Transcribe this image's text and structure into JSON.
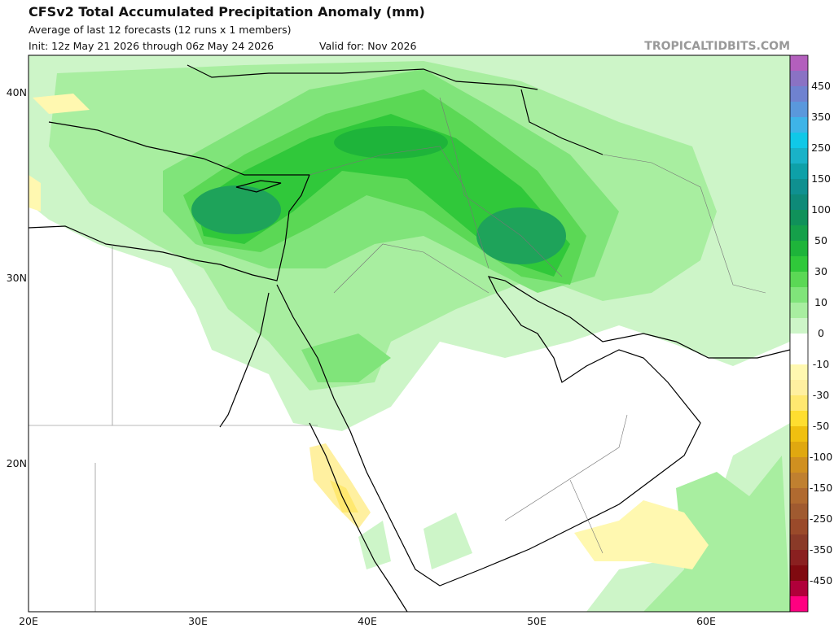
{
  "header": {
    "title": "CFSv2 Total Accumulated Precipitation Anomaly (mm)",
    "subtitle": "Average of last 12 forecasts (12 runs x 1 members)",
    "init": "Init: 12z May 21 2026 through 06z May 24 2026",
    "valid": "Valid for: Nov 2026",
    "watermark": "TROPICALTIDBITS.COM"
  },
  "map": {
    "lat_labels": [
      "40N",
      "30N",
      "20N"
    ],
    "lon_labels": [
      "20E",
      "30E",
      "40E",
      "50E",
      "60E"
    ]
  },
  "colorbar": {
    "labels": [
      "450",
      "350",
      "250",
      "150",
      "100",
      "50",
      "30",
      "10",
      "0",
      "-10",
      "-30",
      "-50",
      "-100",
      "-150",
      "-250",
      "-350",
      "-450"
    ],
    "colors": [
      "#b35fbd",
      "#8a72c4",
      "#6f82d0",
      "#5a98dc",
      "#3eb4e8",
      "#10c8e8",
      "#19b2c8",
      "#0ea0a8",
      "#0f9090",
      "#0e8a78",
      "#10915a",
      "#15a04a",
      "#1eb43a",
      "#30c83a",
      "#5bd855",
      "#80e47a",
      "#a8eea0",
      "#cdf5c8",
      "#ffffff",
      "#ffffff",
      "#fff8b0",
      "#fff0a0",
      "#ffe870",
      "#ffde30",
      "#f0c010",
      "#e0a810",
      "#d09020",
      "#c08030",
      "#b06a30",
      "#a05a30",
      "#9a4a2a",
      "#8a3a28",
      "#8a2020",
      "#800a10",
      "#b0003a",
      "#ff0080"
    ]
  }
}
